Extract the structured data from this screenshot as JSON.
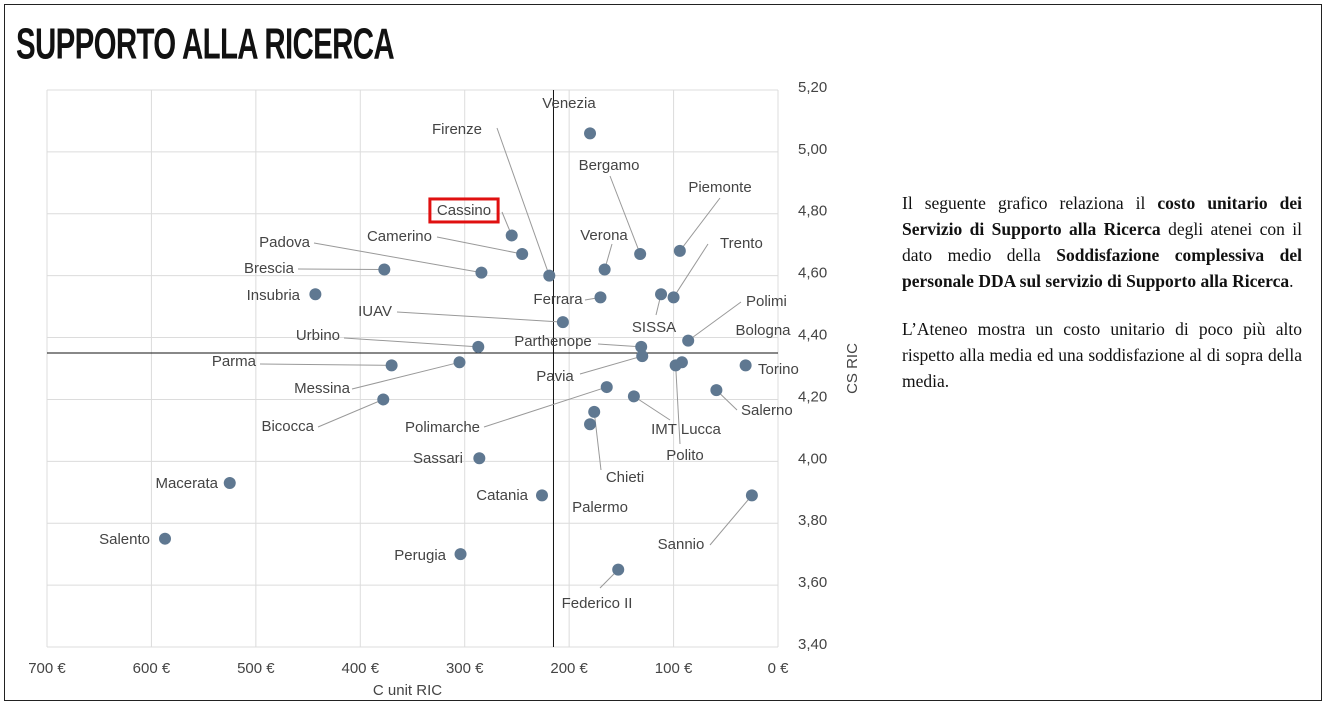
{
  "title": "SUPPORTO ALLA RICERCA",
  "chart_data": {
    "type": "scatter",
    "labels": [
      "Venezia",
      "Bergamo",
      "Piemonte",
      "Cassino",
      "Camerino",
      "Firenze",
      "Verona",
      "Padova",
      "Brescia",
      "Trento",
      "SISSA",
      "Ferrara",
      "Insubria",
      "IUAV",
      "Polimi",
      "Bologna",
      "Parthenope",
      "Pavia",
      "Urbino",
      "Parma",
      "Messina",
      "Torino",
      "Polito",
      "Salerno",
      "IMT Lucca",
      "Polimarche",
      "Bicocca",
      "Chieti",
      "Palermo",
      "Sassari",
      "Macerata",
      "Catania",
      "Sannio",
      "Salento",
      "Perugia",
      "Federico II"
    ],
    "x": [
      180,
      132,
      94,
      255,
      245,
      219,
      166,
      284,
      377,
      100,
      112,
      170,
      443,
      206,
      86,
      92,
      131,
      130,
      287,
      370,
      305,
      31,
      98,
      59,
      138,
      164,
      378,
      176,
      180,
      286,
      525,
      226,
      25,
      587,
      304,
      153
    ],
    "values": [
      5.06,
      4.67,
      4.68,
      4.73,
      4.67,
      4.6,
      4.62,
      4.61,
      4.62,
      4.53,
      4.54,
      4.53,
      4.54,
      4.45,
      4.39,
      4.32,
      4.37,
      4.34,
      4.37,
      4.31,
      4.32,
      4.31,
      4.31,
      4.23,
      4.21,
      4.24,
      4.2,
      4.16,
      4.12,
      4.01,
      3.93,
      3.89,
      3.89,
      3.75,
      3.7,
      3.65
    ],
    "color": "#5f7891",
    "highlight": "Cassino",
    "highlight_color": "#e01010",
    "reference_x": 215,
    "reference_y": 4.35,
    "xlim": [
      700,
      0
    ],
    "xticks": [
      {
        "value": 700,
        "label": "700 €"
      },
      {
        "value": 600,
        "label": "600 €"
      },
      {
        "value": 500,
        "label": "500 €"
      },
      {
        "value": 400,
        "label": "400 €"
      },
      {
        "value": 300,
        "label": "300 €"
      },
      {
        "value": 200,
        "label": "200 €"
      },
      {
        "value": 100,
        "label": "100 €"
      },
      {
        "value": 0,
        "label": "0 €"
      }
    ],
    "ylim": [
      3.4,
      5.2
    ],
    "yticks": [
      {
        "value": 3.4,
        "label": "3,40"
      },
      {
        "value": 3.6,
        "label": "3,60"
      },
      {
        "value": 3.8,
        "label": "3,80"
      },
      {
        "value": 4.0,
        "label": "4,00"
      },
      {
        "value": 4.2,
        "label": "4,20"
      },
      {
        "value": 4.4,
        "label": "4,40"
      },
      {
        "value": 4.6,
        "label": "4,60"
      },
      {
        "value": 4.8,
        "label": "4,80"
      },
      {
        "value": 5.0,
        "label": "5,00"
      },
      {
        "value": 5.2,
        "label": "5,20"
      }
    ],
    "xlabel": "C unit RIC",
    "ylabel": "CS RIC",
    "grid": true
  },
  "text_panel": {
    "paragraphs": [
      [
        {
          "text": "Il seguente grafico relaziona il ",
          "bold": false
        },
        {
          "text": "costo unitario dei Servizio di Supporto alla Ricerca",
          "bold": true
        },
        {
          "text": " degli atenei con il dato medio della ",
          "bold": false
        },
        {
          "text": "Soddisfazione complessiva del personale DDA sul servizio di Supporto alla Ricerca",
          "bold": true
        },
        {
          "text": ".",
          "bold": false
        }
      ],
      [
        {
          "text": "L’Ateneo mostra un costo unitario di poco più alto rispetto alla media ed una soddisfazione al di sopra della media.",
          "bold": false
        }
      ]
    ]
  }
}
